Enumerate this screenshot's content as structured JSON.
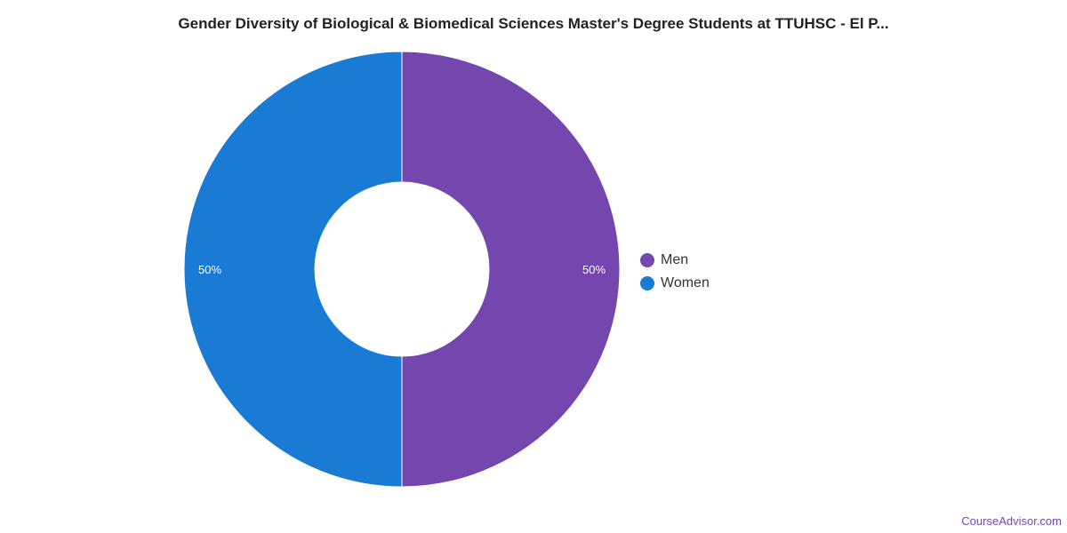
{
  "chart_data": {
    "type": "pie",
    "subtype": "donut",
    "title": "Gender Diversity of Biological & Biomedical Sciences Master's Degree Students at TTUHSC - El P...",
    "categories": [
      "Men",
      "Women"
    ],
    "values": [
      50,
      50
    ],
    "data_labels": [
      "50%",
      "50%"
    ],
    "colors": [
      "#7447af",
      "#1a7bd4"
    ],
    "legend": {
      "placement": "right",
      "entries": [
        "Men",
        "Women"
      ]
    }
  },
  "credit": "CourseAdvisor.com"
}
